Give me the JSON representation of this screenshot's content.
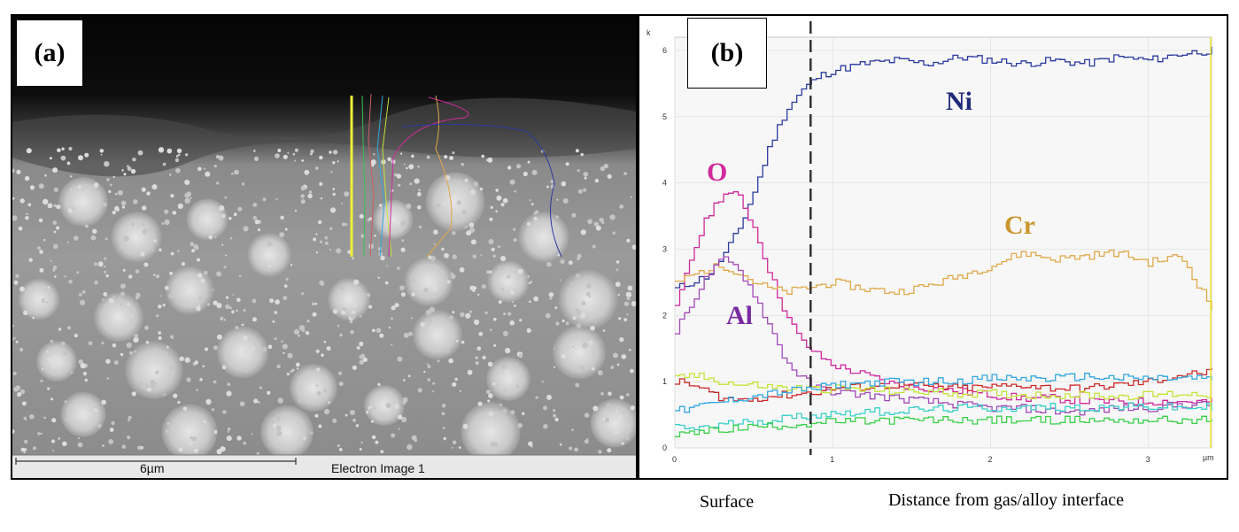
{
  "panel_a": {
    "label": "(a)",
    "scale_label": "6µm",
    "image_label": "Electron Image 1"
  },
  "panel_b": {
    "label": "(b)",
    "y_unit": "k",
    "x_unit": "µm",
    "element_labels": {
      "ni": {
        "text": "Ni",
        "color": "#1f2a7a"
      },
      "o": {
        "text": "O",
        "color": "#d02a9c"
      },
      "cr": {
        "text": "Cr",
        "color": "#c9962f"
      },
      "al": {
        "text": "Al",
        "color": "#7a2aa0"
      }
    }
  },
  "captions": {
    "surface": "Surface",
    "distance": "Distance from gas/alloy interface"
  },
  "chart_data": {
    "type": "line",
    "xlim": [
      0,
      3.4
    ],
    "ylim": [
      0,
      6.2
    ],
    "x_ticks": [
      0,
      1,
      2,
      3
    ],
    "y_ticks": [
      0,
      1,
      2,
      3,
      4,
      5,
      6
    ],
    "x_tick_labels": [
      "0",
      "1",
      "2",
      "3"
    ],
    "y_tick_labels": [
      "0",
      "1",
      "2",
      "3",
      "4",
      "5",
      "6"
    ],
    "vline_x": 0.86,
    "grid": true,
    "x": [
      0,
      0.1,
      0.2,
      0.3,
      0.4,
      0.5,
      0.6,
      0.7,
      0.8,
      0.9,
      1.0,
      1.2,
      1.4,
      1.6,
      1.8,
      2.0,
      2.2,
      2.4,
      2.6,
      2.8,
      3.0,
      3.2,
      3.4
    ],
    "series": [
      {
        "name": "Ni",
        "color": "#2a3a9e",
        "values": [
          2.4,
          2.5,
          2.6,
          2.9,
          3.3,
          3.9,
          4.6,
          5.1,
          5.4,
          5.6,
          5.7,
          5.8,
          5.85,
          5.8,
          5.9,
          5.85,
          5.8,
          5.85,
          5.8,
          5.9,
          5.85,
          5.95,
          6.0
        ]
      },
      {
        "name": "O",
        "color": "#d02a9c",
        "values": [
          2.1,
          2.9,
          3.5,
          3.85,
          3.8,
          3.3,
          2.6,
          2.0,
          1.6,
          1.4,
          1.25,
          1.1,
          0.95,
          0.9,
          0.85,
          0.8,
          0.75,
          0.75,
          0.7,
          0.7,
          0.7,
          0.7,
          0.7
        ]
      },
      {
        "name": "Cr",
        "color": "#e0a84a",
        "values": [
          2.5,
          2.6,
          2.7,
          2.75,
          2.65,
          2.5,
          2.4,
          2.35,
          2.4,
          2.45,
          2.5,
          2.4,
          2.35,
          2.45,
          2.6,
          2.75,
          2.95,
          2.85,
          2.9,
          2.95,
          2.8,
          2.9,
          2.1
        ]
      },
      {
        "name": "Al",
        "color": "#a24ab8",
        "values": [
          1.75,
          2.2,
          2.6,
          2.85,
          2.7,
          2.3,
          1.8,
          1.3,
          1.05,
          0.9,
          0.85,
          0.8,
          0.75,
          0.7,
          0.65,
          0.6,
          0.6,
          0.55,
          0.55,
          0.6,
          0.6,
          0.65,
          0.65
        ]
      },
      {
        "name": "",
        "color": "#cc2a2a",
        "values": [
          1.0,
          0.95,
          0.85,
          0.75,
          0.72,
          0.75,
          0.78,
          0.8,
          0.82,
          0.85,
          0.9,
          0.92,
          0.95,
          0.93,
          0.9,
          0.92,
          0.95,
          0.9,
          0.9,
          0.95,
          1.0,
          1.1,
          1.15
        ]
      },
      {
        "name": "",
        "color": "#c4e43a",
        "values": [
          1.05,
          1.1,
          1.05,
          1.0,
          0.95,
          0.95,
          0.92,
          0.9,
          0.9,
          0.88,
          0.9,
          0.88,
          0.85,
          0.85,
          0.82,
          0.82,
          0.8,
          0.8,
          0.8,
          0.78,
          0.8,
          0.82,
          0.8
        ]
      },
      {
        "name": "",
        "color": "#33a7e0",
        "values": [
          0.55,
          0.6,
          0.65,
          0.7,
          0.75,
          0.78,
          0.82,
          0.85,
          0.88,
          0.9,
          0.95,
          0.98,
          1.0,
          1.0,
          1.02,
          1.05,
          1.05,
          1.05,
          1.08,
          1.05,
          1.05,
          1.05,
          1.05
        ]
      },
      {
        "name": "",
        "color": "#3ad0c8",
        "values": [
          0.3,
          0.3,
          0.32,
          0.35,
          0.38,
          0.4,
          0.42,
          0.45,
          0.48,
          0.5,
          0.52,
          0.55,
          0.55,
          0.58,
          0.6,
          0.6,
          0.6,
          0.62,
          0.6,
          0.62,
          0.62,
          0.6,
          0.62
        ]
      },
      {
        "name": "",
        "color": "#3ad04a",
        "values": [
          0.2,
          0.22,
          0.25,
          0.28,
          0.3,
          0.32,
          0.33,
          0.35,
          0.36,
          0.38,
          0.4,
          0.4,
          0.42,
          0.42,
          0.42,
          0.42,
          0.42,
          0.42,
          0.42,
          0.42,
          0.42,
          0.42,
          0.42
        ]
      }
    ]
  }
}
